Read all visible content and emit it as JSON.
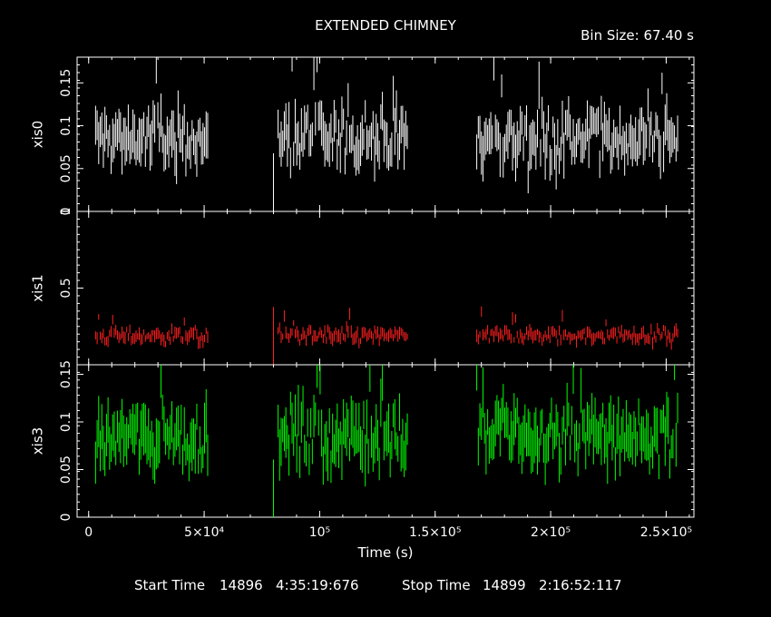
{
  "title": "EXTENDED CHIMNEY",
  "bin_size_label": "Bin Size:  67.40  s",
  "xlabel": "Time (s)",
  "footer": {
    "start_time_label": "Start Time",
    "start_time_value": "14896   4:35:19:676",
    "stop_time_label": "Stop Time",
    "stop_time_value": "14899   2:16:52:117"
  },
  "colors": {
    "background": "#000000",
    "axes": "#ffffff",
    "xis0": "#ffffff",
    "xis1": "#ff2020",
    "xis3": "#00ff00"
  },
  "chart_data": {
    "type": "scatter",
    "x_range": [
      -5000,
      262000
    ],
    "x_ticks": [
      {
        "value": 0,
        "label": "0"
      },
      {
        "value": 50000,
        "label": "5×10⁴"
      },
      {
        "value": 100000,
        "label": "10⁵"
      },
      {
        "value": 150000,
        "label": "1.5×10⁵"
      },
      {
        "value": 200000,
        "label": "2×10⁵"
      },
      {
        "value": 250000,
        "label": "2.5×10⁵"
      }
    ],
    "segments_x": [
      [
        3000,
        52000
      ],
      [
        82000,
        138000
      ],
      [
        168000,
        255000
      ]
    ],
    "extra_points": [
      {
        "x": 80000,
        "y_fraction_of_panel": 0.2
      }
    ],
    "series": [
      {
        "name": "xis0",
        "color": "#ffffff",
        "ylim": [
          0,
          0.18
        ],
        "y_ticks": [
          {
            "value": 0,
            "label": "0"
          },
          {
            "value": 0.05,
            "label": "0.05"
          },
          {
            "value": 0.1,
            "label": "0.1"
          },
          {
            "value": 0.15,
            "label": "0.15"
          }
        ],
        "typical_rate": 0.085,
        "scatter": 0.022,
        "error": 0.02
      },
      {
        "name": "xis1",
        "color": "#ff2020",
        "ylim": [
          0,
          1.0
        ],
        "y_ticks": [
          {
            "value": 0.5,
            "label": "0.5"
          },
          {
            "value": 1.0,
            "label": "1"
          }
        ],
        "typical_rate": 0.19,
        "scatter": 0.035,
        "error": 0.03
      },
      {
        "name": "xis3",
        "color": "#00ff00",
        "ylim": [
          0,
          0.16
        ],
        "y_ticks": [
          {
            "value": 0,
            "label": "0"
          },
          {
            "value": 0.05,
            "label": "0.05"
          },
          {
            "value": 0.1,
            "label": "0.1"
          },
          {
            "value": 0.15,
            "label": "0.15"
          }
        ],
        "typical_rate": 0.085,
        "scatter": 0.022,
        "error": 0.02
      }
    ]
  }
}
